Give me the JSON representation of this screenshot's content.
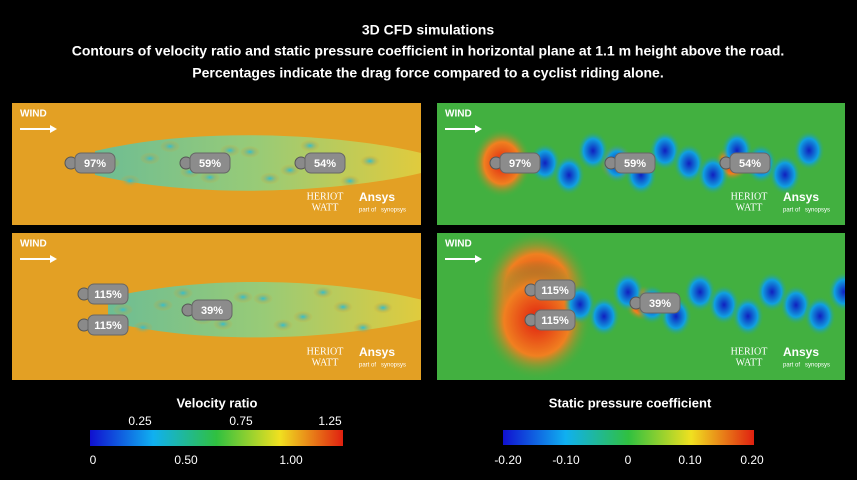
{
  "title": [
    "3D CFD simulations",
    "Contours of velocity ratio and static pressure coefficient in horizontal plane at 1.1 m height above the road.",
    "Percentages indicate the drag force compared to a cyclist riding alone."
  ],
  "panels": [
    {
      "wind": "WIND",
      "labels": [
        "97%",
        "59%",
        "54%"
      ],
      "logo": [
        "HERIOT",
        "WATT",
        "Ansys",
        "part of",
        "synopsys"
      ]
    },
    {
      "wind": "WIND",
      "labels": [
        "97%",
        "59%",
        "54%"
      ],
      "logo": [
        "HERIOT",
        "WATT",
        "Ansys",
        "part of",
        "synopsys"
      ]
    },
    {
      "wind": "WIND",
      "labels": [
        "115%",
        "115%",
        "39%"
      ],
      "logo": [
        "HERIOT",
        "WATT",
        "Ansys",
        "part of",
        "synopsys"
      ]
    },
    {
      "wind": "WIND",
      "labels": [
        "115%",
        "115%",
        "39%"
      ],
      "logo": [
        "HERIOT",
        "WATT",
        "Ansys",
        "part of",
        "synopsys"
      ]
    }
  ],
  "colorbars": [
    {
      "title": "Velocity ratio",
      "upper_ticks": [
        "0.25",
        "0.75",
        "1.25"
      ],
      "lower_ticks": [
        "0",
        "0.50",
        "1.00"
      ]
    },
    {
      "title": "Static pressure coefficient",
      "lower_ticks": [
        "-0.20",
        "-0.10",
        "0",
        "0.10",
        "0.20"
      ]
    }
  ]
}
